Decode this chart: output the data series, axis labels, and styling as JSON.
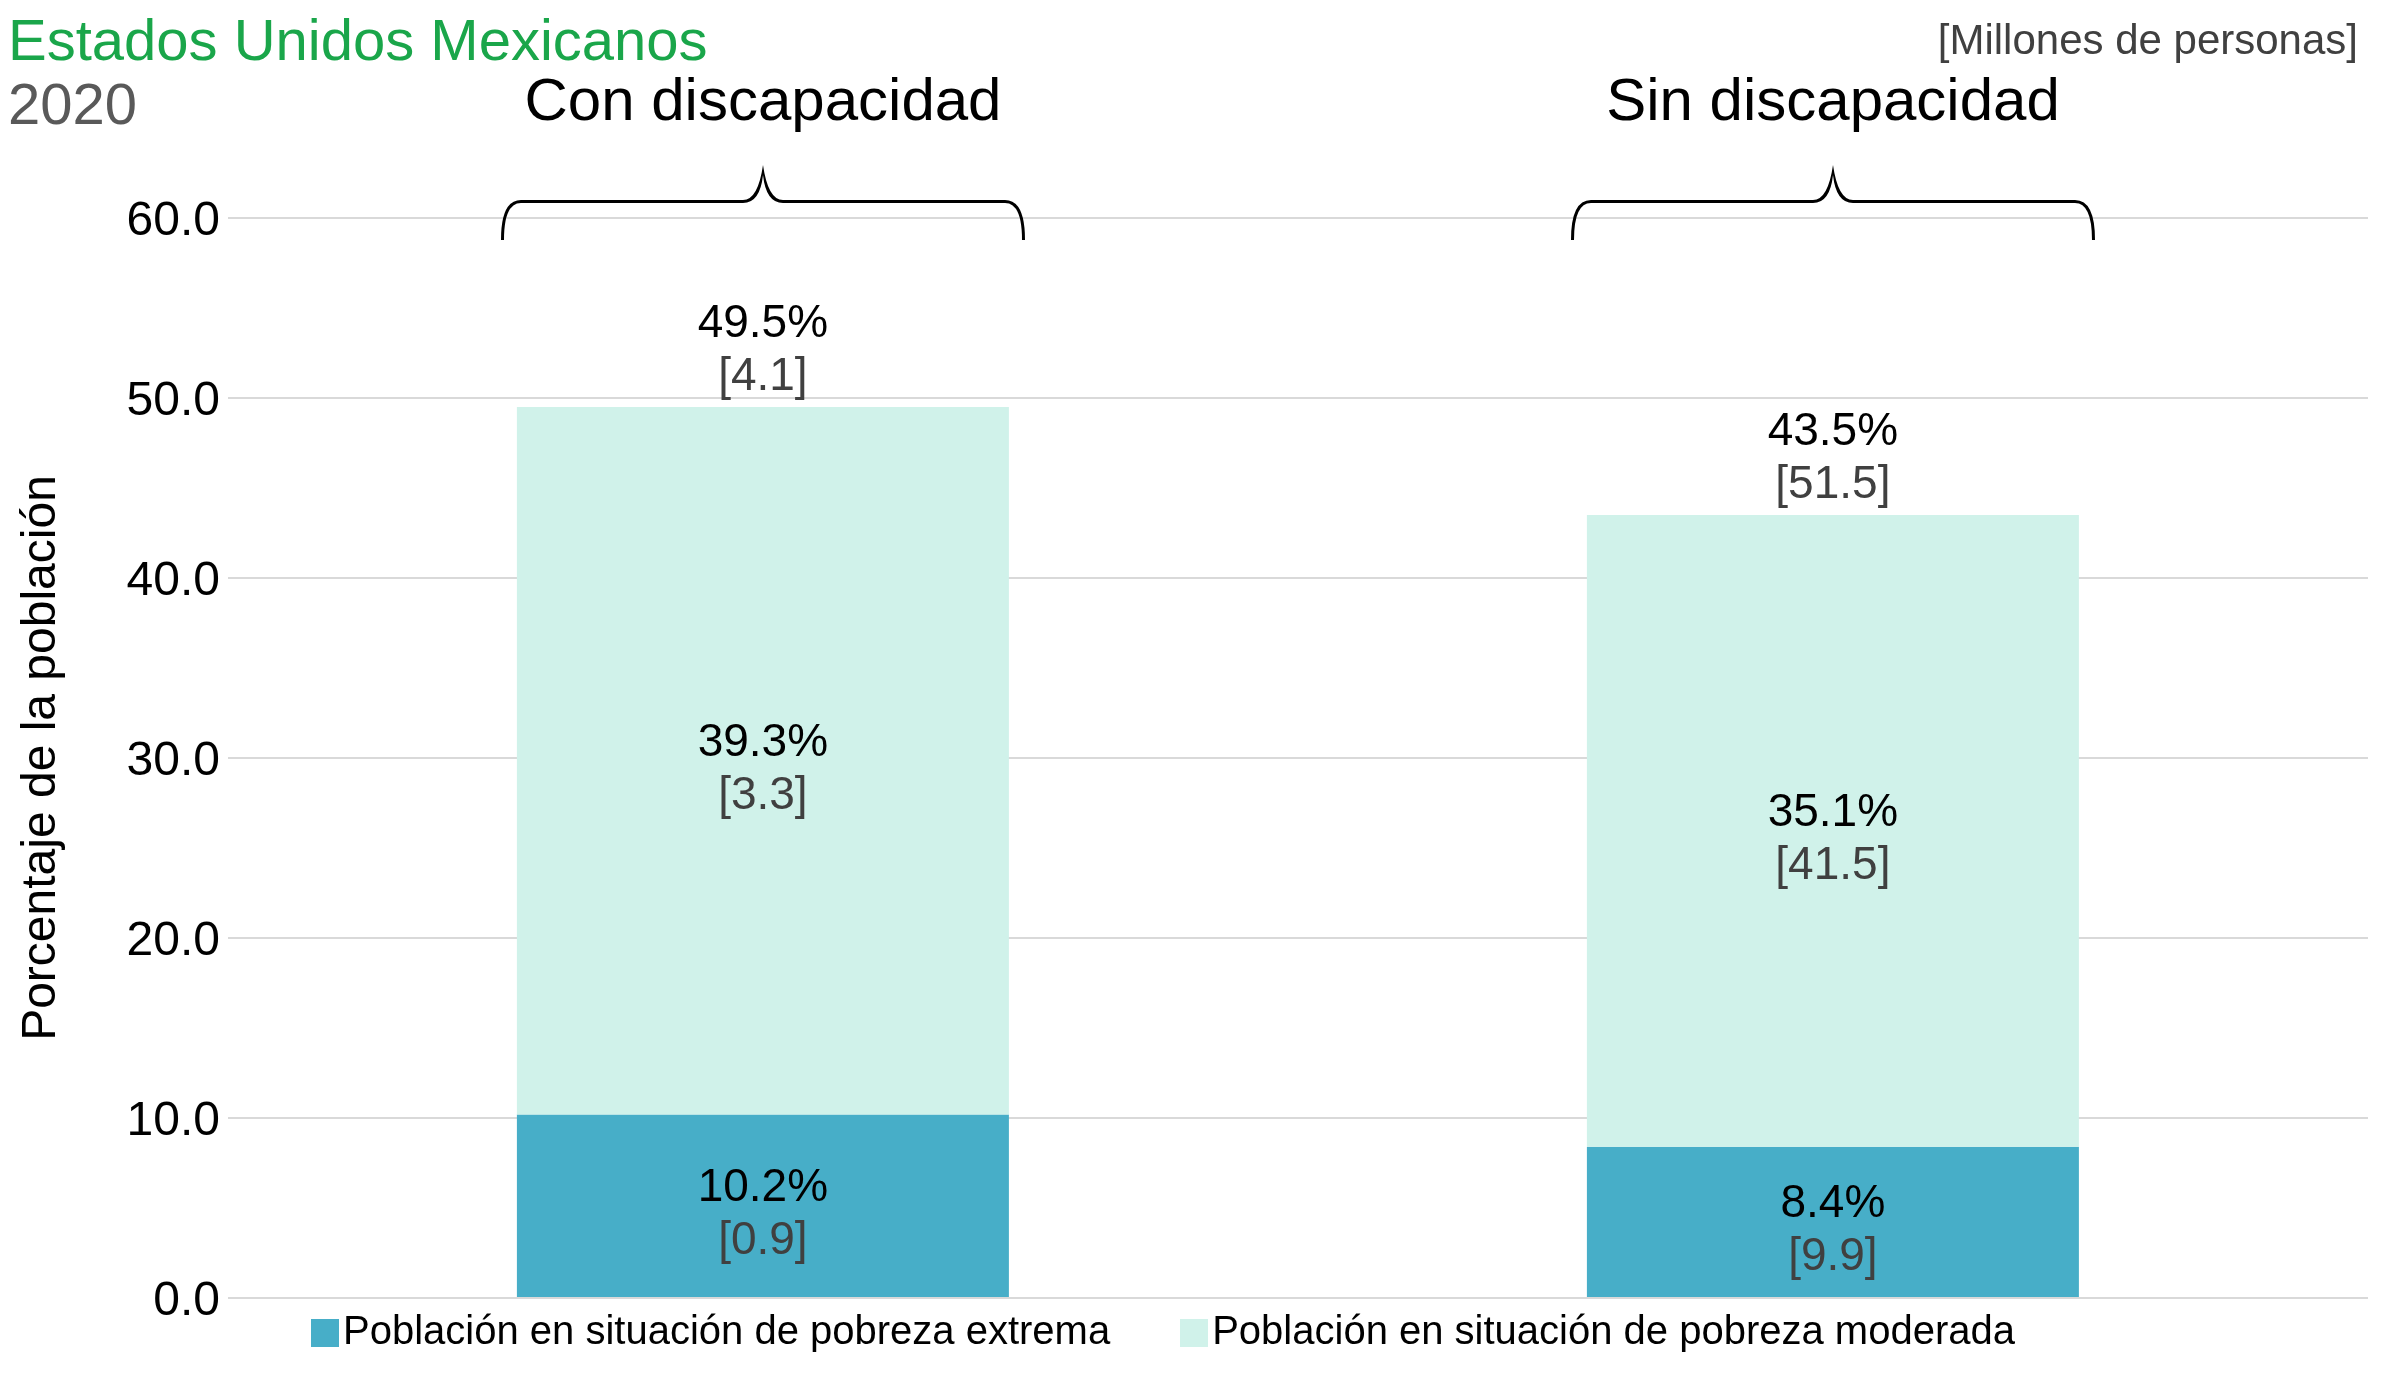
{
  "chart_data": {
    "type": "bar",
    "title": "Estados Unidos Mexicanos",
    "subtitle": "2020",
    "ylabel": "Porcentaje de la población",
    "annotations": [
      "[Millones de personas]"
    ],
    "categories": [
      "Con discapacidad",
      "Sin discapacidad"
    ],
    "stacked": true,
    "series": [
      {
        "name": "Población en situación de pobreza extrema",
        "color": "#47aec8",
        "values": [
          10.2,
          8.4
        ],
        "value_labels": [
          "10.2%\n[0.9]",
          "8.4%\n[9.9]"
        ]
      },
      {
        "name": "Población en situación de pobreza moderada",
        "color": "#d0f2ea",
        "values": [
          39.3,
          35.1
        ],
        "value_labels": [
          "39.3%\n[3.3]",
          "35.1%\n[41.5]"
        ]
      }
    ],
    "totals": [
      "49.5%\n[4.1]",
      "43.5%\n[51.5]"
    ],
    "ylim": [
      0,
      60
    ],
    "yticks": [
      {
        "value": 0,
        "label": "0.0"
      },
      {
        "value": 10,
        "label": "10.0"
      },
      {
        "value": 20,
        "label": "20.0"
      },
      {
        "value": 30,
        "label": "30.0"
      },
      {
        "value": 40,
        "label": "40.0"
      },
      {
        "value": 50,
        "label": "50.0"
      },
      {
        "value": 60,
        "label": "60.0"
      }
    ],
    "grid": "y",
    "legend": "bottom"
  }
}
